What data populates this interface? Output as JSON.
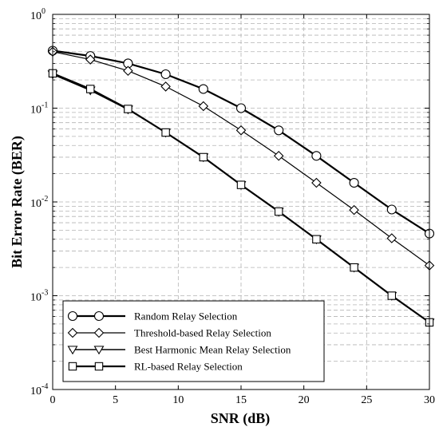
{
  "chart_data": {
    "type": "line",
    "title": "",
    "xlabel": "SNR (dB)",
    "ylabel": "Bit Error Rate (BER)",
    "xlim": [
      0,
      30
    ],
    "ylim": [
      0.0001,
      1
    ],
    "yscale": "log",
    "grid": true,
    "legend_position": "bottom-left",
    "x_ticks": [
      0,
      5,
      10,
      15,
      20,
      25,
      30
    ],
    "y_ticks": [
      {
        "value": 1,
        "base": "10",
        "exp": "0"
      },
      {
        "value": 0.1,
        "base": "10",
        "exp": "-1"
      },
      {
        "value": 0.01,
        "base": "10",
        "exp": "-2"
      },
      {
        "value": 0.001,
        "base": "10",
        "exp": "-3"
      },
      {
        "value": 0.0001,
        "base": "10",
        "exp": "-4"
      }
    ],
    "x": [
      0,
      3,
      6,
      9,
      12,
      15,
      18,
      21,
      24,
      27,
      30
    ],
    "series": [
      {
        "name": "Random Relay Selection",
        "marker": "circle",
        "color": "#000000",
        "values": [
          0.41,
          0.36,
          0.3,
          0.23,
          0.16,
          0.1,
          0.058,
          0.031,
          0.016,
          0.0083,
          0.0046
        ]
      },
      {
        "name": "Threshold-based Relay Selection",
        "marker": "diamond",
        "color": "#000000",
        "values": [
          0.4,
          0.33,
          0.25,
          0.17,
          0.105,
          0.058,
          0.031,
          0.016,
          0.0082,
          0.0041,
          0.0021
        ]
      },
      {
        "name": "Best Harmonic Mean Relay Selection",
        "marker": "triangle-down",
        "color": "#000000",
        "values": [
          0.23,
          0.155,
          0.097,
          0.055,
          0.03,
          0.0152,
          0.0079,
          0.004,
          0.002,
          0.001,
          0.00052
        ]
      },
      {
        "name": "RL-based Relay Selection",
        "marker": "square",
        "color": "#000000",
        "values": [
          0.235,
          0.16,
          0.098,
          0.055,
          0.03,
          0.0152,
          0.0079,
          0.004,
          0.002,
          0.001,
          0.00052
        ]
      }
    ]
  }
}
